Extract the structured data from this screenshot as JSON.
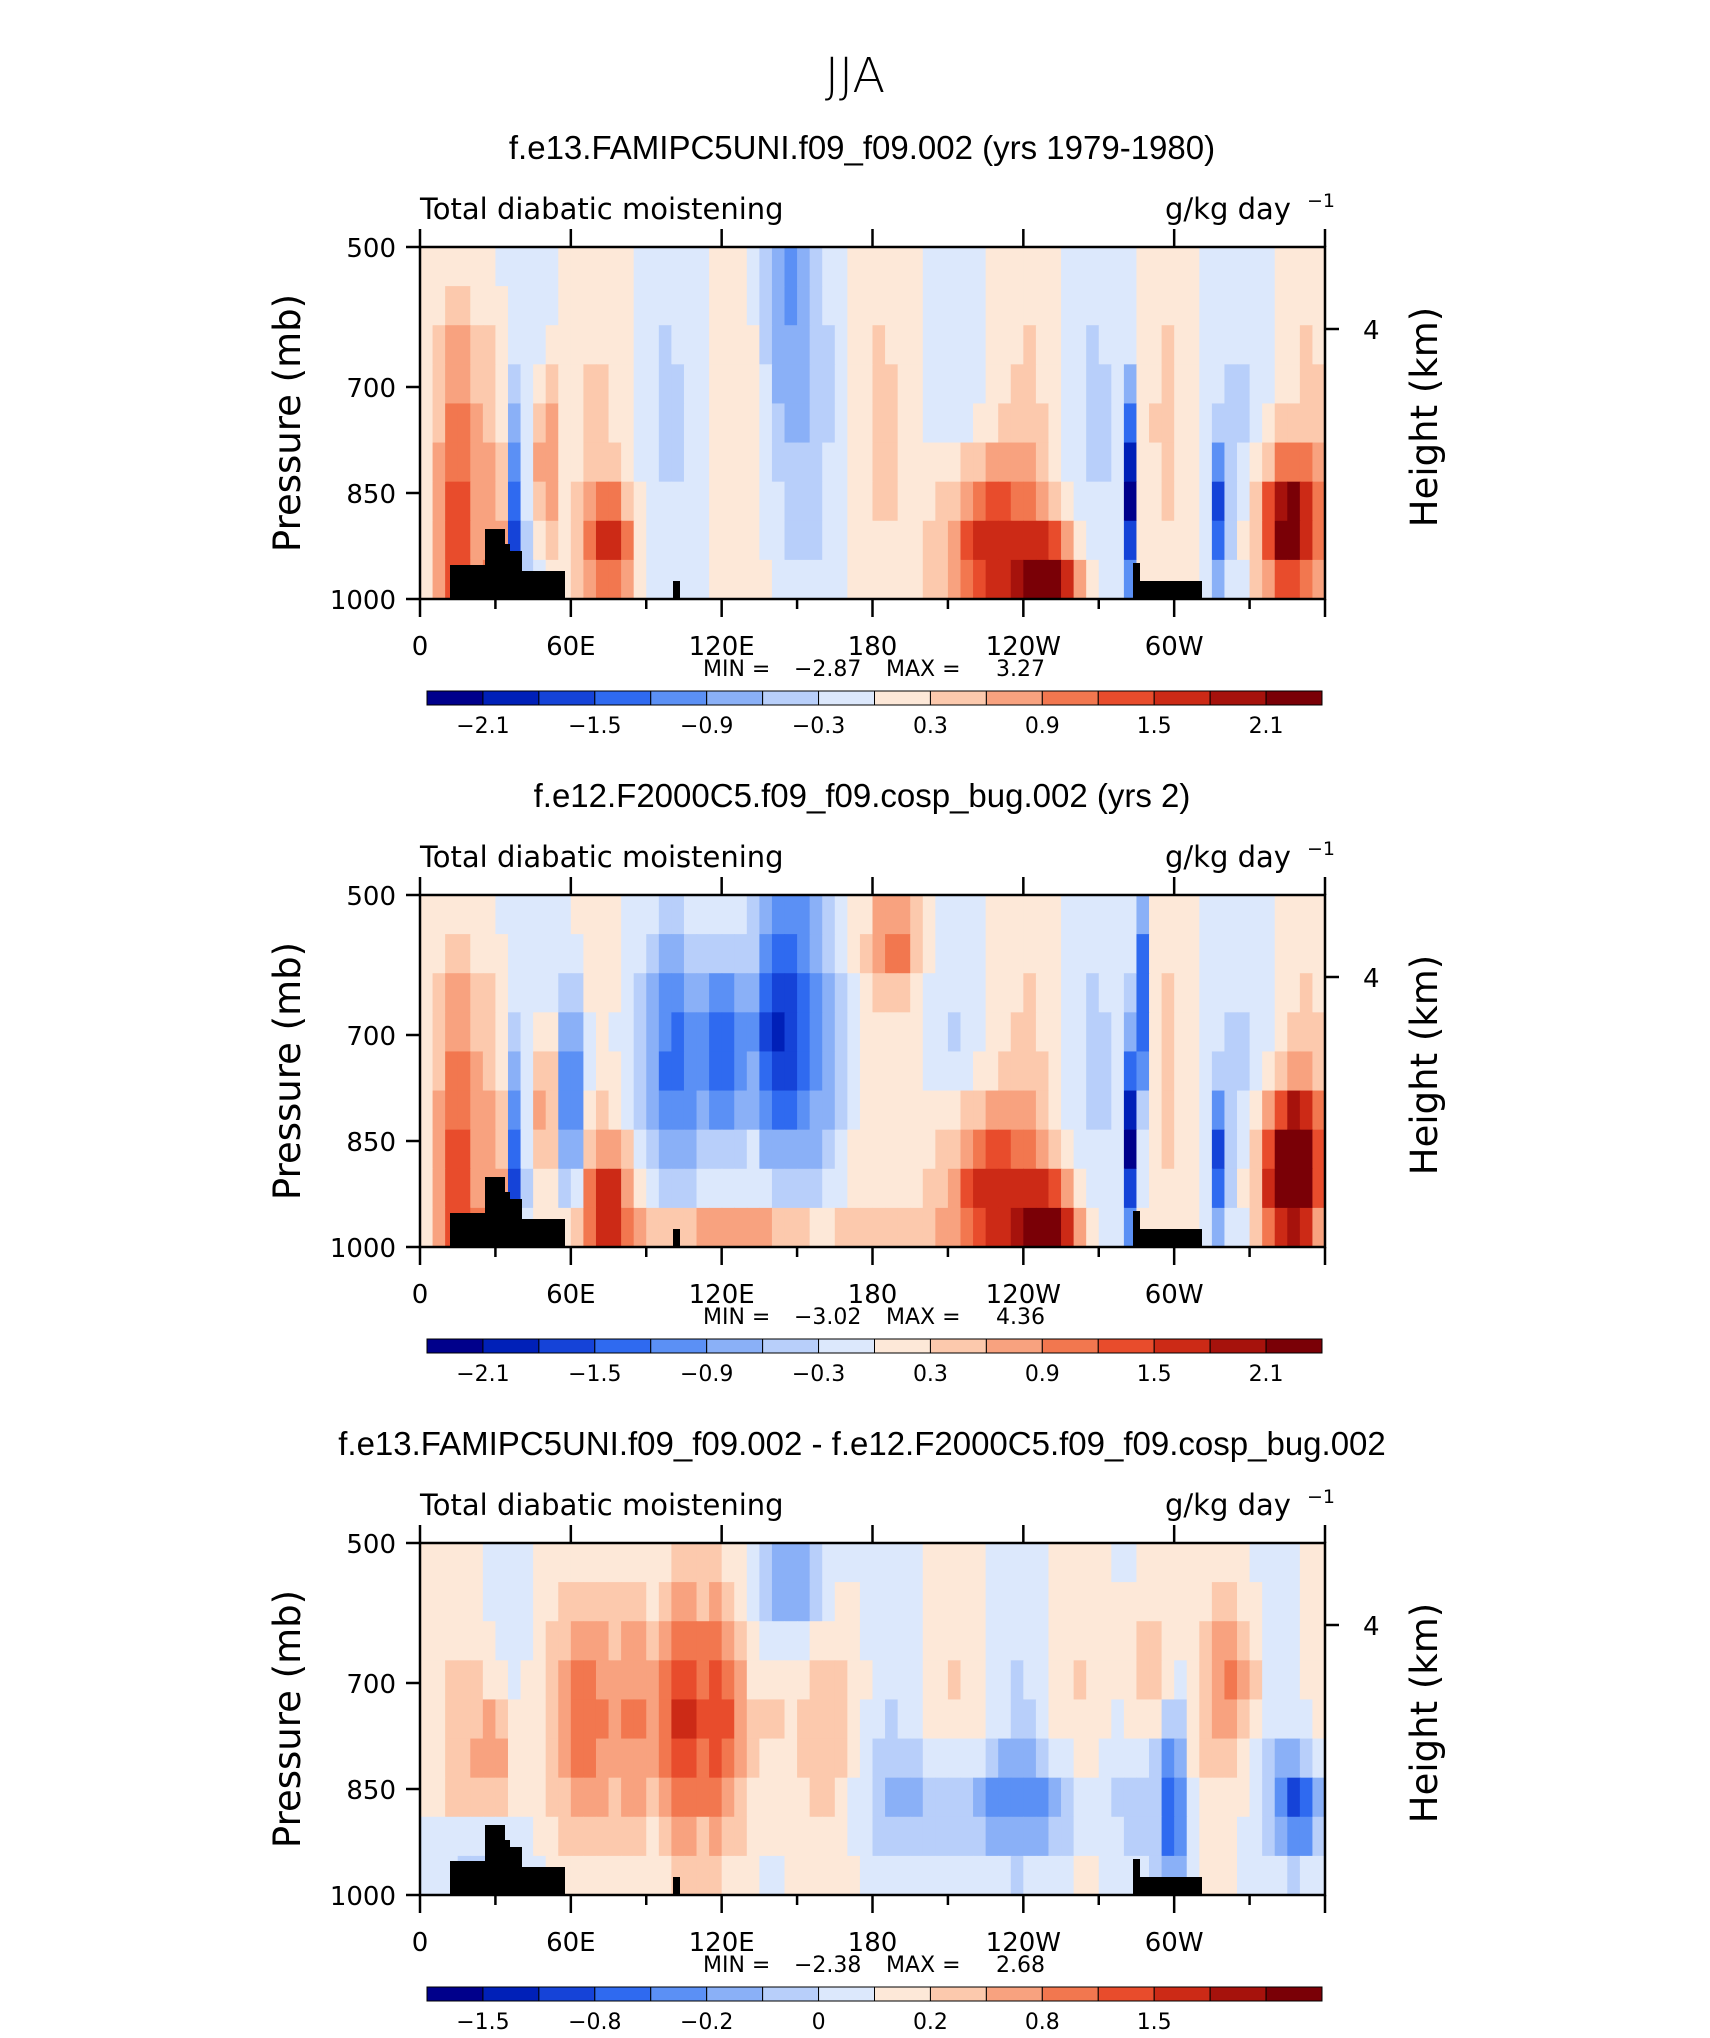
{
  "figure": {
    "title": "JJA"
  },
  "chart_data": [
    {
      "type": "heatmap",
      "title": "f.e13.FAMIPC5UNI.f09_f09.002 (yrs 1979-1980)",
      "variable": "Total diabatic moistening",
      "units_base": "g/kg day",
      "units_exp": "−1",
      "ylabel": "Pressure (mb)",
      "ylabel_right": "Height (km)",
      "yticks": [
        "500",
        "700",
        "850",
        "1000"
      ],
      "yticks_right": [
        "4"
      ],
      "xticks": [
        "0",
        "60E",
        "120E",
        "180",
        "120W",
        "60W"
      ],
      "stats": {
        "min_label": "MIN =",
        "min": "−2.87",
        "max_label": "MAX =",
        "max": "3.27"
      },
      "colorbar_labels": [
        "−2.1",
        "−1.5",
        "−0.9",
        "−0.3",
        "0.3",
        "0.9",
        "1.5",
        "2.1"
      ],
      "min_value": -2.87,
      "max_value": 3.27,
      "pattern": "control"
    },
    {
      "type": "heatmap",
      "title": "f.e12.F2000C5.f09_f09.cosp_bug.002 (yrs 2)",
      "variable": "Total diabatic moistening",
      "units_base": "g/kg day",
      "units_exp": "−1",
      "ylabel": "Pressure (mb)",
      "ylabel_right": "Height (km)",
      "yticks": [
        "500",
        "700",
        "850",
        "1000"
      ],
      "yticks_right": [
        "4"
      ],
      "xticks": [
        "0",
        "60E",
        "120E",
        "180",
        "120W",
        "60W"
      ],
      "stats": {
        "min_label": "MIN =",
        "min": "−3.02",
        "max_label": "MAX =",
        "max": "4.36"
      },
      "colorbar_labels": [
        "−2.1",
        "−1.5",
        "−0.9",
        "−0.3",
        "0.3",
        "0.9",
        "1.5",
        "2.1"
      ],
      "min_value": -3.02,
      "max_value": 4.36,
      "pattern": "test"
    },
    {
      "type": "heatmap",
      "title": "f.e13.FAMIPC5UNI.f09_f09.002 - f.e12.F2000C5.f09_f09.cosp_bug.002",
      "variable": "Total diabatic moistening",
      "units_base": "g/kg day",
      "units_exp": "−1",
      "ylabel": "Pressure (mb)",
      "ylabel_right": "Height (km)",
      "yticks": [
        "500",
        "700",
        "850",
        "1000"
      ],
      "yticks_right": [
        "4"
      ],
      "xticks": [
        "0",
        "60E",
        "120E",
        "180",
        "120W",
        "60W"
      ],
      "stats": {
        "min_label": "MIN =",
        "min": "−2.38",
        "max_label": "MAX =",
        "max": "2.68"
      },
      "colorbar_labels": [
        "−1.5",
        "−0.8",
        "−0.2",
        "0",
        "0.2",
        "0.8",
        "1.5"
      ],
      "min_value": -2.38,
      "max_value": 2.68,
      "pattern": "diff"
    }
  ],
  "colors": [
    "#00008b",
    "#0020b8",
    "#1543d8",
    "#2f6af0",
    "#5b90f5",
    "#8ab0f7",
    "#b8cffa",
    "#dce8fc",
    "#fde8d8",
    "#fcc9ad",
    "#f8a27f",
    "#f2774f",
    "#e84c2c",
    "#cc2a16",
    "#a6120c",
    "#7a0006"
  ]
}
